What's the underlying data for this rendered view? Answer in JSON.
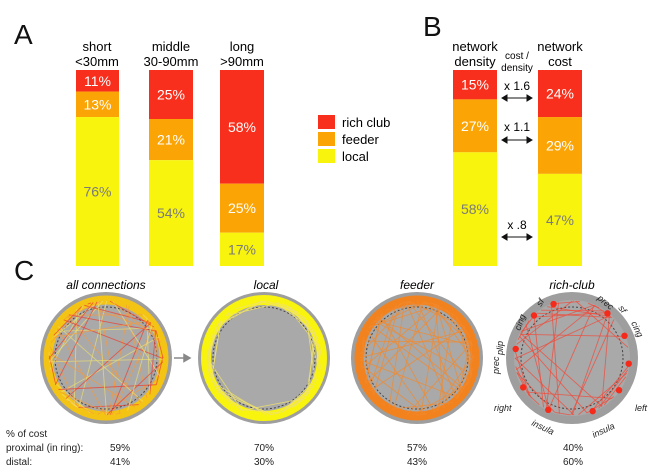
{
  "colors": {
    "rich_club": "#f82f1c",
    "feeder": "#fba405",
    "local": "#f8f40e",
    "value_text": "#7a7a7a",
    "value_text_light": "#ffffff",
    "ring_gray": "#9e9e9e",
    "disc_gray": "#a9a9a9"
  },
  "panel_a": {
    "letter": "A",
    "bars": [
      {
        "label1": "short",
        "label2": "<30mm",
        "rich": "11%",
        "feeder": "13%",
        "local": "76%",
        "rich_v": 11,
        "feeder_v": 13,
        "local_v": 76
      },
      {
        "label1": "middle",
        "label2": "30-90mm",
        "rich": "25%",
        "feeder": "21%",
        "local": "54%",
        "rich_v": 25,
        "feeder_v": 21,
        "local_v": 54
      },
      {
        "label1": "long",
        "label2": ">90mm",
        "rich": "58%",
        "feeder": "25%",
        "local": "17%",
        "rich_v": 58,
        "feeder_v": 25,
        "local_v": 17
      }
    ]
  },
  "legend": {
    "items": [
      {
        "label": "rich club",
        "color": "#f82f1c"
      },
      {
        "label": "feeder",
        "color": "#fba405"
      },
      {
        "label": "local",
        "color": "#f8f40e"
      }
    ]
  },
  "panel_b": {
    "letter": "B",
    "density": {
      "label1": "network",
      "label2": "density",
      "rich": "15%",
      "feeder": "27%",
      "local": "58%",
      "rich_v": 15,
      "feeder_v": 27,
      "local_v": 58
    },
    "cost": {
      "label1": "network",
      "label2": "cost",
      "rich": "24%",
      "feeder": "29%",
      "local": "47%",
      "rich_v": 24,
      "feeder_v": 29,
      "local_v": 47
    },
    "ratio_header1": "cost /",
    "ratio_header2": "density",
    "ratios": [
      "x 1.6",
      "x 1.1",
      "x .8"
    ]
  },
  "panel_c": {
    "letter": "C",
    "titles": [
      "all connections",
      "local",
      "feeder",
      "rich-club"
    ],
    "region_labels": [
      "cing",
      "sf",
      "prec",
      "sf",
      "cing",
      "prec",
      "plip",
      "right",
      "insula",
      "insula",
      "left"
    ],
    "stats": {
      "header": "% of cost",
      "proximal_label": "proximal (in ring):",
      "distal_label": "distal:",
      "proximal": [
        "59%",
        "70%",
        "57%",
        "40%"
      ],
      "distal": [
        "41%",
        "30%",
        "43%",
        "60%"
      ]
    }
  }
}
